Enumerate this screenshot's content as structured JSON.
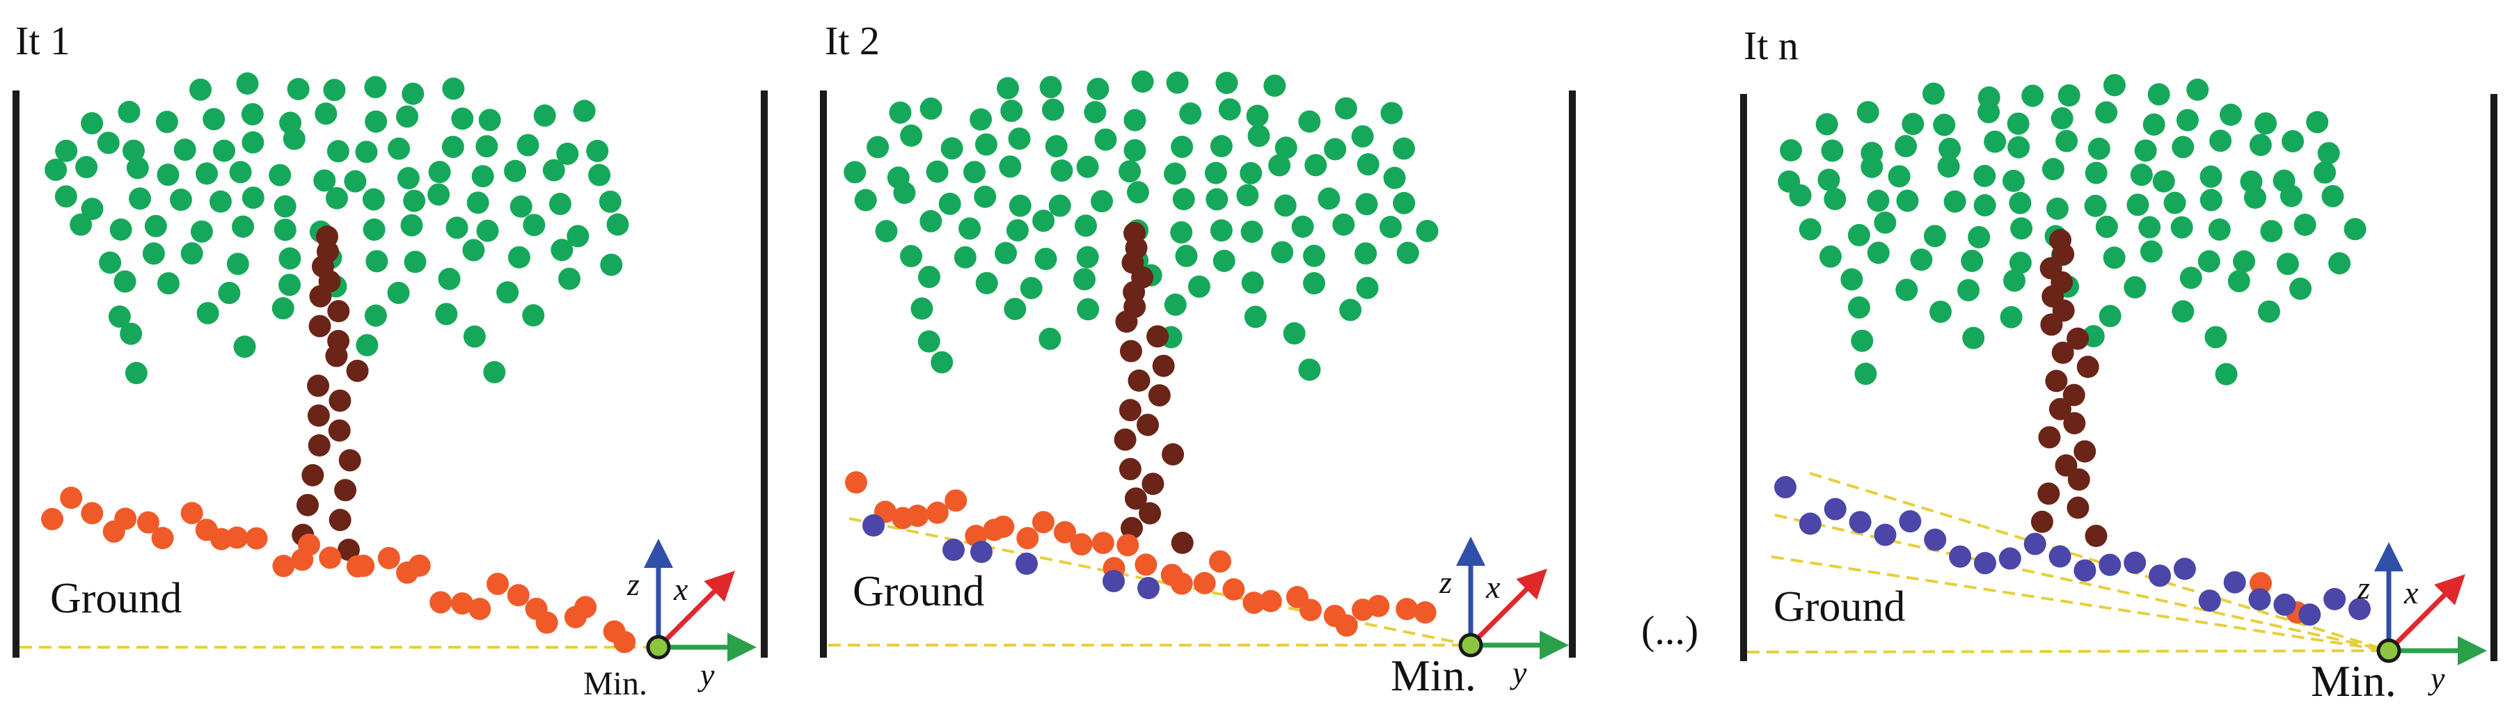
{
  "panels": [
    {
      "label": "It 1",
      "ground_label": "Ground",
      "min_label": "Min.",
      "axes": {
        "z": "z",
        "x": "x",
        "y": "y"
      },
      "fit_lines": 1,
      "ground_points_classified": 0
    },
    {
      "label": "It 2",
      "ground_label": "Ground",
      "min_label": "Min.",
      "axes": {
        "z": "z",
        "x": "x",
        "y": "y"
      },
      "fit_lines": 2,
      "ground_points_classified": 6
    },
    {
      "label": "It n",
      "ground_label": "Ground",
      "min_label": "Min.",
      "axes": {
        "z": "z",
        "x": "x",
        "y": "y"
      },
      "fit_lines": 4,
      "ground_points_classified": 24
    }
  ],
  "continuation_label": "(...)",
  "colors": {
    "leaves": "#16a85a",
    "trunk": "#6b2418",
    "unclassified_ground": "#f05a28",
    "classified_ground": "#4b46a8",
    "fit_line": "#e6cf3c",
    "min_point": "#8cc63f",
    "axis_z": "#2f4fa8",
    "axis_x": "#e0282b",
    "axis_y": "#2aa04a",
    "wall": "#1a1a1a"
  }
}
